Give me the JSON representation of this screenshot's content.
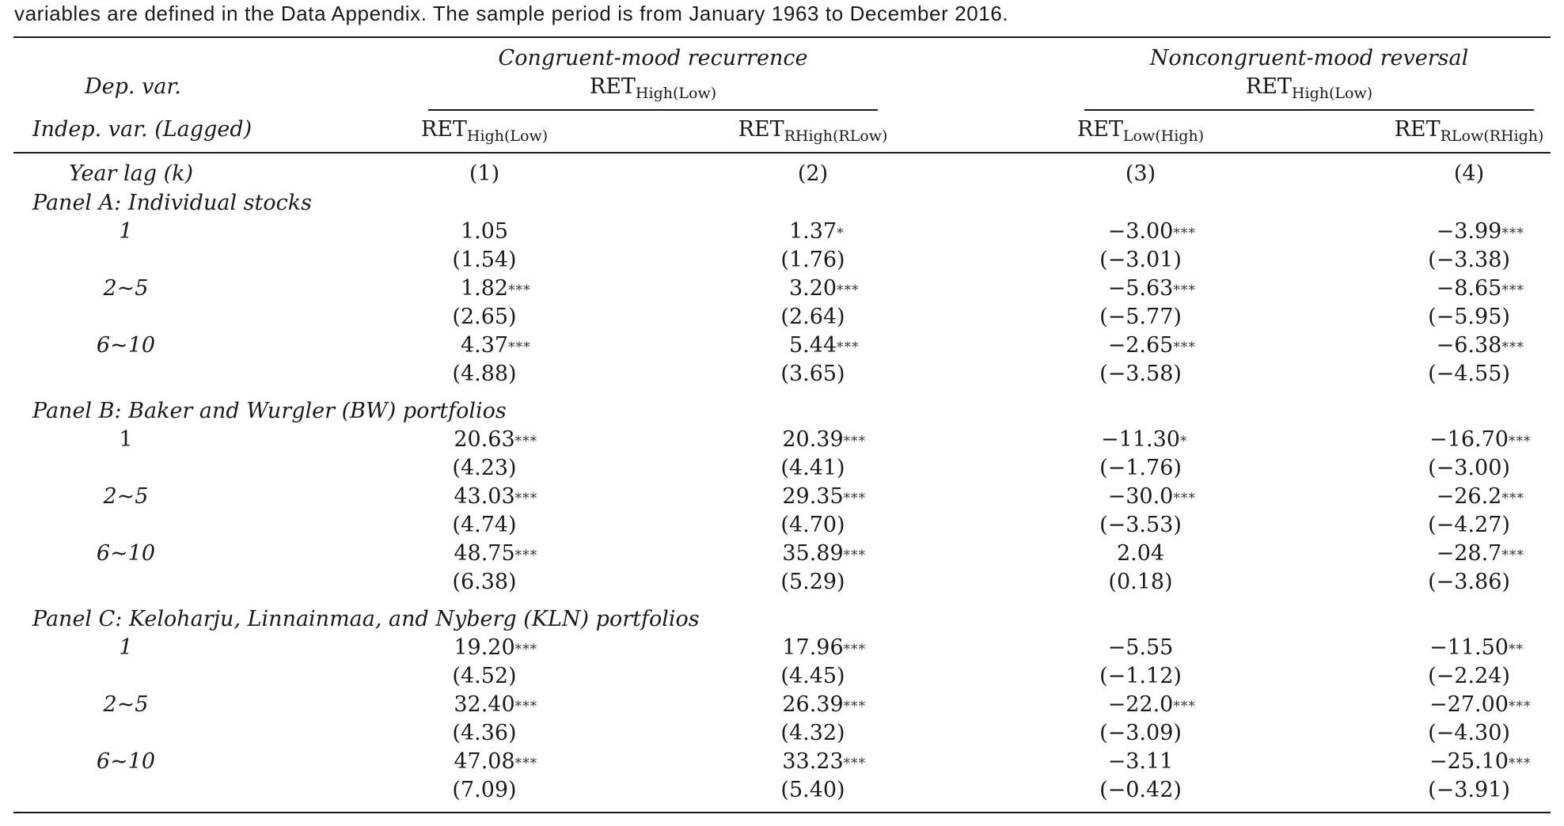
{
  "caption": "variables are defined in the Data Appendix. The sample period is from January 1963 to December 2016.",
  "header": {
    "dep_var": "Dep. var.",
    "indep_var": "Indep. var. (Lagged)",
    "year_lag": "Year lag (k)",
    "groups": [
      {
        "title": "Congruent-mood recurrence",
        "dep_base": "RET",
        "dep_sub": "High(Low)"
      },
      {
        "title": "Noncongruent-mood reversal",
        "dep_base": "RET",
        "dep_sub": "High(Low)"
      }
    ],
    "columns": [
      {
        "base": "RET",
        "sub": "High(Low)",
        "num": "(1)"
      },
      {
        "base": "RET",
        "sub": "RHigh(RLow)",
        "num": "(2)"
      },
      {
        "base": "RET",
        "sub": "Low(High)",
        "num": "(3)"
      },
      {
        "base": "RET",
        "sub": "RLow(RHigh)",
        "num": "(4)"
      }
    ]
  },
  "panels": [
    {
      "title": "Panel A: Individual stocks",
      "rows": [
        {
          "lag": "1",
          "coef": [
            [
              "1.05",
              ""
            ],
            [
              "1.37",
              "*"
            ],
            [
              "−3.00",
              "***"
            ],
            [
              "−3.99",
              "***"
            ]
          ],
          "t": [
            "(1.54)",
            "(1.76)",
            "(−3.01)",
            "(−3.38)"
          ]
        },
        {
          "lag": "2~5",
          "coef": [
            [
              "1.82",
              "***"
            ],
            [
              "3.20",
              "***"
            ],
            [
              "−5.63",
              "***"
            ],
            [
              "−8.65",
              "***"
            ]
          ],
          "t": [
            "(2.65)",
            "(2.64)",
            "(−5.77)",
            "(−5.95)"
          ]
        },
        {
          "lag": "6~10",
          "coef": [
            [
              "4.37",
              "***"
            ],
            [
              "5.44",
              "***"
            ],
            [
              "−2.65",
              "***"
            ],
            [
              "−6.38",
              "***"
            ]
          ],
          "t": [
            "(4.88)",
            "(3.65)",
            "(−3.58)",
            "(−4.55)"
          ]
        }
      ]
    },
    {
      "title": "Panel B: Baker and Wurgler (BW) portfolios",
      "rows": [
        {
          "lag": "1",
          "coef": [
            [
              "20.63",
              "***"
            ],
            [
              "20.39",
              "***"
            ],
            [
              "−11.30",
              "*"
            ],
            [
              "−16.70",
              "***"
            ]
          ],
          "t": [
            "(4.23)",
            "(4.41)",
            "(−1.76)",
            "(−3.00)"
          ]
        },
        {
          "lag": "2~5",
          "coef": [
            [
              "43.03",
              "***"
            ],
            [
              "29.35",
              "***"
            ],
            [
              "−30.0",
              "***"
            ],
            [
              "−26.2",
              "***"
            ]
          ],
          "t": [
            "(4.74)",
            "(4.70)",
            "(−3.53)",
            "(−4.27)"
          ]
        },
        {
          "lag": "6~10",
          "coef": [
            [
              "48.75",
              "***"
            ],
            [
              "35.89",
              "***"
            ],
            [
              "2.04",
              ""
            ],
            [
              "−28.7",
              "***"
            ]
          ],
          "t": [
            "(6.38)",
            "(5.29)",
            "(0.18)",
            "(−3.86)"
          ]
        }
      ]
    },
    {
      "title": "Panel C: Keloharju, Linnainmaa, and Nyberg (KLN) portfolios",
      "rows": [
        {
          "lag": "1",
          "coef": [
            [
              "19.20",
              "***"
            ],
            [
              "17.96",
              "***"
            ],
            [
              "−5.55",
              ""
            ],
            [
              "−11.50",
              "**"
            ]
          ],
          "t": [
            "(4.52)",
            "(4.45)",
            "(−1.12)",
            "(−2.24)"
          ]
        },
        {
          "lag": "2~5",
          "coef": [
            [
              "32.40",
              "***"
            ],
            [
              "26.39",
              "***"
            ],
            [
              "−22.0",
              "***"
            ],
            [
              "−27.00",
              "***"
            ]
          ],
          "t": [
            "(4.36)",
            "(4.32)",
            "(−3.09)",
            "(−4.30)"
          ]
        },
        {
          "lag": "6~10",
          "coef": [
            [
              "47.08",
              "***"
            ],
            [
              "33.23",
              "***"
            ],
            [
              "−3.11",
              ""
            ],
            [
              "−25.10",
              "***"
            ]
          ],
          "t": [
            "(7.09)",
            "(5.40)",
            "(−0.42)",
            "(−3.91)"
          ]
        }
      ]
    }
  ]
}
